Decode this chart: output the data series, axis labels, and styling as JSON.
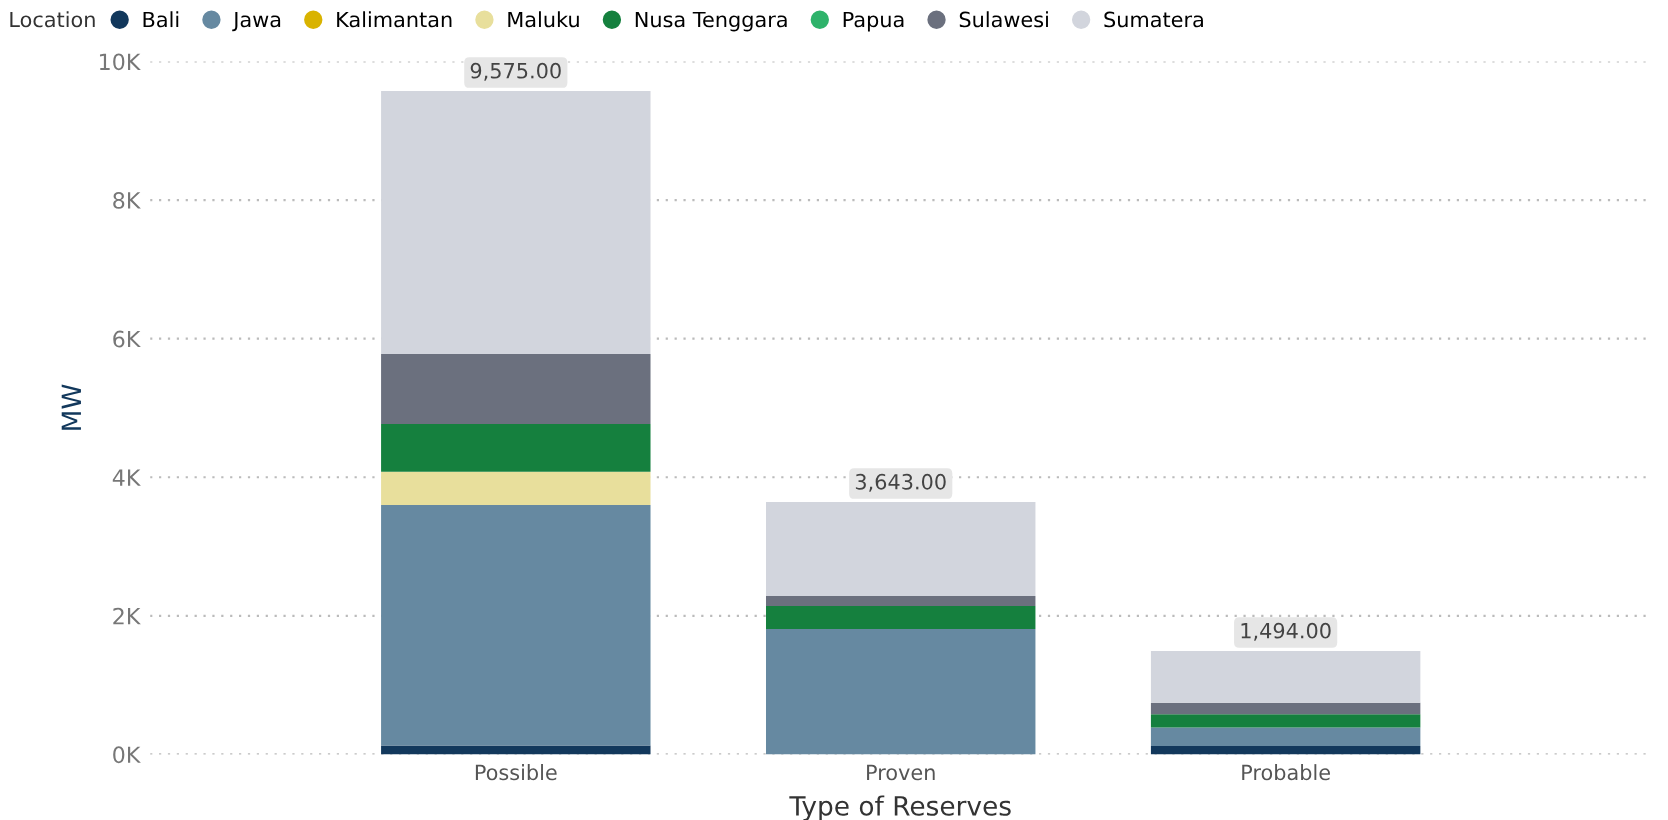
{
  "chart_data": {
    "type": "bar",
    "stacked": true,
    "xlabel": "Type of Reserves",
    "ylabel": "MW",
    "legend_title": "Location",
    "legend": "top left",
    "grid": "y",
    "categories": [
      "Possible",
      "Proven",
      "Probable"
    ],
    "series": [
      {
        "name": "Bali",
        "color": "#12385c",
        "values": [
          130,
          null,
          120
        ]
      },
      {
        "name": "Jawa",
        "color": "#6689a1",
        "values": [
          3470,
          1810,
          270
        ]
      },
      {
        "name": "Kalimantan",
        "color": "#d9b300",
        "values": [
          null,
          null,
          null
        ]
      },
      {
        "name": "Maluku",
        "color": "#e8df9c",
        "values": [
          480,
          null,
          null
        ]
      },
      {
        "name": "Nusa Tenggara",
        "color": "#15803e",
        "values": [
          690,
          330,
          190
        ]
      },
      {
        "name": "Papua",
        "color": "#2fb36b",
        "values": [
          null,
          null,
          null
        ]
      },
      {
        "name": "Sulawesi",
        "color": "#6b707e",
        "values": [
          1010,
          145,
          165
        ]
      },
      {
        "name": "Sumatera",
        "color": "#d2d5dd",
        "values": [
          3795,
          1358,
          749
        ]
      }
    ],
    "totals": [
      "9,575.00",
      "3,643.00",
      "1,494.00"
    ],
    "ylim": [
      0,
      10000
    ],
    "yticks": [
      {
        "value": 0,
        "label": "0K"
      },
      {
        "value": 2000,
        "label": "2K"
      },
      {
        "value": 4000,
        "label": "4K"
      },
      {
        "value": 6000,
        "label": "6K"
      },
      {
        "value": 8000,
        "label": "8K"
      },
      {
        "value": 10000,
        "label": "10K"
      }
    ]
  }
}
